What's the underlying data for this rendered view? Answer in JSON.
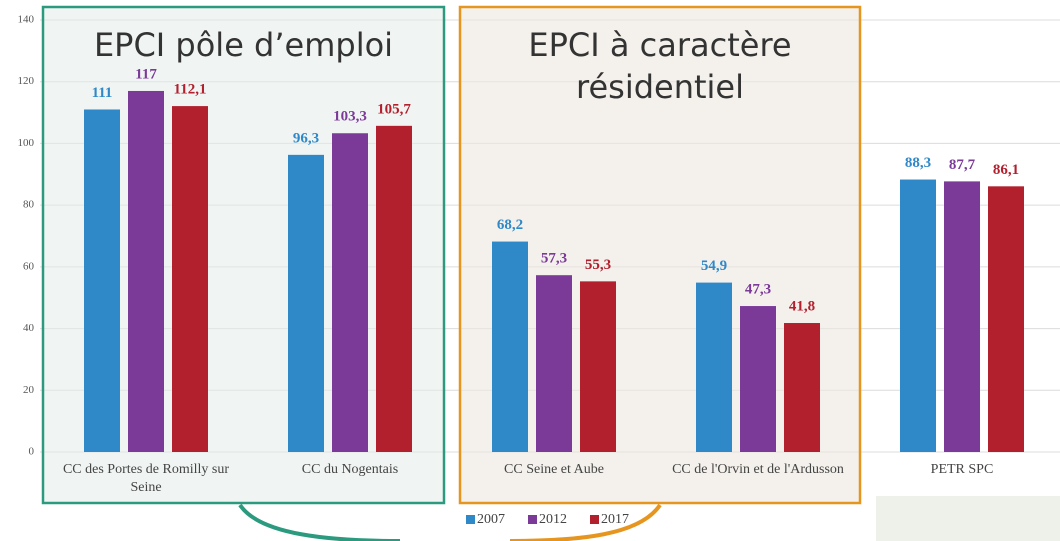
{
  "chart_data": {
    "type": "bar",
    "categories": [
      "CC des Portes de Romilly sur Seine",
      "CC du Nogentais",
      "CC Seine et Aube",
      "CC de l'Orvin et de l'Ardusson",
      "PETR SPC"
    ],
    "series": [
      {
        "name": "2007",
        "color": "#2f88c8",
        "values": [
          111,
          96.3,
          68.2,
          54.9,
          88.3
        ],
        "value_labels": [
          "111",
          "96,3",
          "68,2",
          "54,9",
          "88,3"
        ]
      },
      {
        "name": "2012",
        "color": "#7b3a98",
        "values": [
          117,
          103.3,
          57.3,
          47.3,
          87.7
        ],
        "value_labels": [
          "117",
          "103,3",
          "57,3",
          "47,3",
          "87,7"
        ]
      },
      {
        "name": "2017",
        "color": "#b2202e",
        "values": [
          112.1,
          105.7,
          55.3,
          41.8,
          86.1
        ],
        "value_labels": [
          "112,1",
          "105,7",
          "55,3",
          "41,8",
          "86,1"
        ]
      }
    ],
    "ylim": [
      0,
      140
    ],
    "yticks": [
      0,
      20,
      40,
      60,
      80,
      100,
      120,
      140
    ],
    "grid": true,
    "legend": "bottom",
    "annotations": [
      "EPCI pôle d’emploi",
      "EPCI à caractère résidentiel"
    ]
  }
}
